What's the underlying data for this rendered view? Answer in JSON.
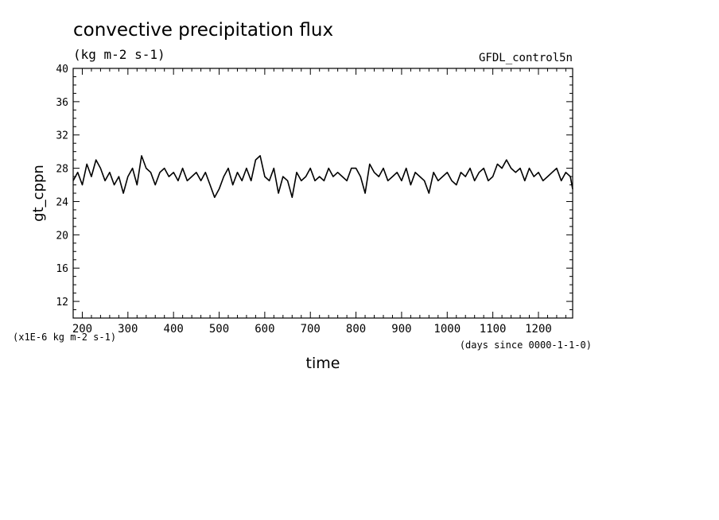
{
  "chart_data": {
    "type": "line",
    "title": "convective precipitation flux",
    "units_label": "(kg m-2 s-1)",
    "dataset_label": "GFDL_control5n",
    "ylabel": "gt_cppn",
    "xlabel": "time",
    "x_units_label": "(days since 0000-1-1-0)",
    "y_scale_label": "(x1E-6 kg m-2 s-1)",
    "xlim": [
      180,
      1275
    ],
    "ylim": [
      10,
      40
    ],
    "x_ticks": [
      200,
      300,
      400,
      500,
      600,
      700,
      800,
      900,
      1000,
      1100,
      1200
    ],
    "y_ticks": [
      12,
      16,
      20,
      24,
      28,
      32,
      36,
      40
    ],
    "grid": false,
    "series": [
      {
        "color": "#000000",
        "x": [
          180,
          190,
          200,
          210,
          220,
          230,
          240,
          250,
          260,
          270,
          280,
          290,
          300,
          310,
          320,
          330,
          340,
          350,
          360,
          370,
          380,
          390,
          400,
          410,
          420,
          430,
          440,
          450,
          460,
          470,
          480,
          490,
          500,
          510,
          520,
          530,
          540,
          550,
          560,
          570,
          580,
          590,
          600,
          610,
          620,
          630,
          640,
          650,
          660,
          670,
          680,
          690,
          700,
          710,
          720,
          730,
          740,
          750,
          760,
          770,
          780,
          790,
          800,
          810,
          820,
          830,
          840,
          850,
          860,
          870,
          880,
          890,
          900,
          910,
          920,
          930,
          940,
          950,
          960,
          970,
          980,
          990,
          1000,
          1010,
          1020,
          1030,
          1040,
          1050,
          1060,
          1070,
          1080,
          1090,
          1100,
          1110,
          1120,
          1130,
          1140,
          1150,
          1160,
          1170,
          1180,
          1190,
          1200,
          1210,
          1220,
          1230,
          1240,
          1250,
          1260,
          1270,
          1275
        ],
        "y": [
          26.5,
          27.5,
          26,
          28.5,
          27,
          29,
          28,
          26.5,
          27.5,
          26,
          27,
          25,
          27,
          28,
          26,
          29.5,
          28,
          27.5,
          26,
          27.5,
          28,
          27,
          27.5,
          26.5,
          28,
          26.5,
          27,
          27.5,
          26.5,
          27.5,
          26,
          24.5,
          25.5,
          27,
          28,
          26,
          27.5,
          26.5,
          28,
          26.5,
          29,
          29.5,
          27,
          26.5,
          28,
          25,
          27,
          26.5,
          24.5,
          27.5,
          26.5,
          27,
          28,
          26.5,
          27,
          26.5,
          28,
          27,
          27.5,
          27,
          26.5,
          28,
          28,
          27,
          25,
          28.5,
          27.5,
          27,
          28,
          26.5,
          27,
          27.5,
          26.5,
          28,
          26,
          27.5,
          27,
          26.5,
          25,
          27.5,
          26.5,
          27,
          27.5,
          26.5,
          26,
          27.5,
          27,
          28,
          26.5,
          27.5,
          28,
          26.5,
          27,
          28.5,
          28,
          29,
          28,
          27.5,
          28,
          26.5,
          28,
          27,
          27.5,
          26.5,
          27,
          27.5,
          28,
          26.5,
          27.5,
          27,
          25.5
        ]
      }
    ]
  }
}
